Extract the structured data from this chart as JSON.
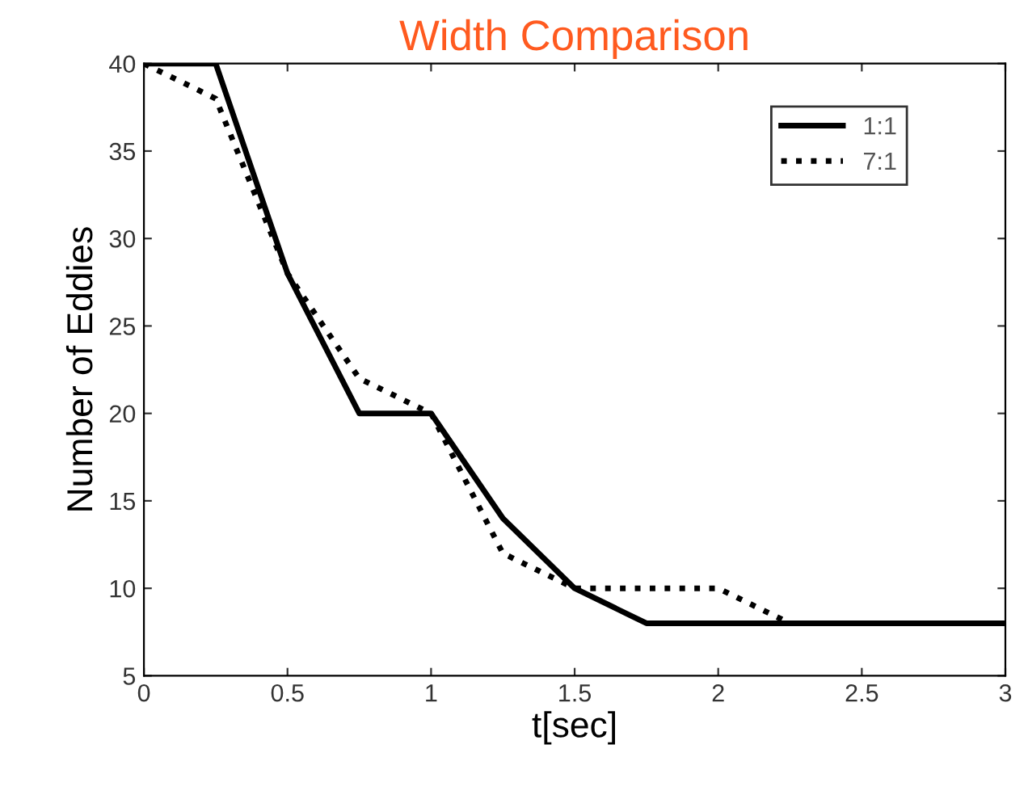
{
  "chart_data": {
    "type": "line",
    "title": "Width Comparison",
    "xlabel": "t[sec]",
    "ylabel": "Number of Eddies",
    "xlim": [
      0,
      3
    ],
    "xticks": [
      0,
      0.5,
      1,
      1.5,
      2,
      2.5,
      3
    ],
    "ylim": [
      5,
      40
    ],
    "yticks": [
      5,
      10,
      15,
      20,
      25,
      30,
      35,
      40
    ],
    "grid": false,
    "legend": "top right",
    "marker": "none",
    "series": [
      {
        "name": "1:1",
        "color": "#000000",
        "line_style": "solid",
        "x": [
          0,
          0.25,
          0.5,
          0.75,
          1,
          1.25,
          1.5,
          1.75,
          3
        ],
        "values": [
          40,
          40,
          28,
          20,
          20,
          14,
          10,
          8,
          8
        ]
      },
      {
        "name": "7:1",
        "color": "#000000",
        "line_style": "dotted",
        "x": [
          0,
          0.25,
          0.5,
          0.75,
          1,
          1.25,
          1.5,
          2,
          2.25,
          3
        ],
        "values": [
          40,
          38,
          28,
          22,
          20,
          12,
          10,
          10,
          8,
          8
        ]
      }
    ]
  }
}
